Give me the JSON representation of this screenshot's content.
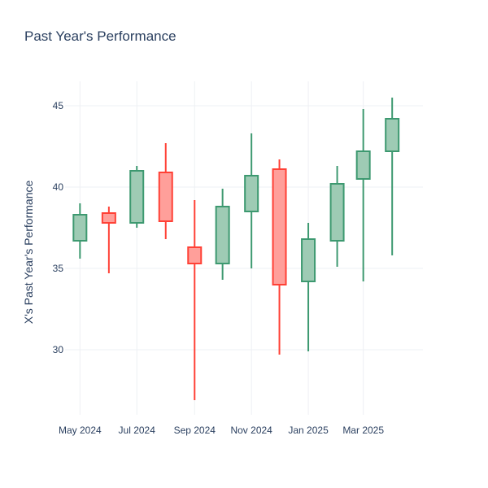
{
  "chart_data": {
    "type": "candlestick",
    "title": "Past Year's Performance",
    "xlabel": "",
    "ylabel": "X's Past Year's Performance",
    "ylim": [
      26,
      46.5
    ],
    "yticks": [
      30,
      35,
      40,
      45
    ],
    "xlim": [
      "2024-04-15",
      "2025-05-04"
    ],
    "xticks": [
      {
        "date": "2024-05-01",
        "label": "May 2024"
      },
      {
        "date": "2024-07-01",
        "label": "Jul 2024"
      },
      {
        "date": "2024-09-01",
        "label": "Sep 2024"
      },
      {
        "date": "2024-11-01",
        "label": "Nov 2024"
      },
      {
        "date": "2025-01-01",
        "label": "Jan 2025"
      },
      {
        "date": "2025-03-01",
        "label": "Mar 2025"
      }
    ],
    "grid": true,
    "colors": {
      "increasing_line": "#3d9970",
      "increasing_fill": "#9ecbb4",
      "decreasing_line": "#ff4136",
      "decreasing_fill": "#ff9f9a",
      "grid": "#eef0f4",
      "text": "#2a3f5f"
    },
    "candles": [
      {
        "date": "2024-05-01",
        "open": 36.7,
        "high": 39.0,
        "low": 35.6,
        "close": 38.3
      },
      {
        "date": "2024-06-01",
        "open": 38.4,
        "high": 38.8,
        "low": 34.7,
        "close": 37.8
      },
      {
        "date": "2024-07-01",
        "open": 37.8,
        "high": 41.3,
        "low": 37.5,
        "close": 41.0
      },
      {
        "date": "2024-08-01",
        "open": 40.9,
        "high": 42.7,
        "low": 36.8,
        "close": 37.9
      },
      {
        "date": "2024-09-01",
        "open": 36.3,
        "high": 39.2,
        "low": 26.9,
        "close": 35.3
      },
      {
        "date": "2024-10-01",
        "open": 35.3,
        "high": 39.9,
        "low": 34.3,
        "close": 38.8
      },
      {
        "date": "2024-11-01",
        "open": 38.5,
        "high": 43.3,
        "low": 35.0,
        "close": 40.7
      },
      {
        "date": "2024-12-01",
        "open": 41.1,
        "high": 41.7,
        "low": 29.7,
        "close": 34.0
      },
      {
        "date": "2025-01-01",
        "open": 34.2,
        "high": 37.8,
        "low": 29.9,
        "close": 36.8
      },
      {
        "date": "2025-02-01",
        "open": 36.7,
        "high": 41.3,
        "low": 35.1,
        "close": 40.2
      },
      {
        "date": "2025-03-01",
        "open": 40.5,
        "high": 44.8,
        "low": 34.2,
        "close": 42.2
      },
      {
        "date": "2025-04-01",
        "open": 42.2,
        "high": 45.5,
        "low": 35.8,
        "close": 44.2
      }
    ]
  }
}
